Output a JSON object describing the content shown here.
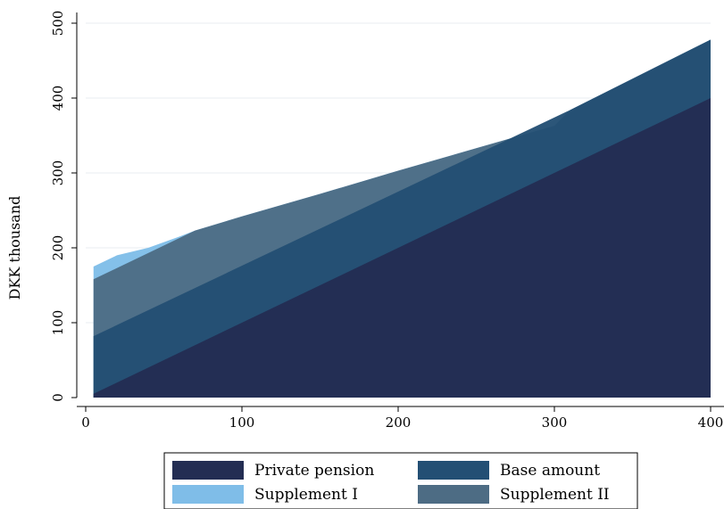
{
  "chart_data": {
    "type": "area",
    "title": "",
    "xlabel": "",
    "ylabel": "DKK thousand",
    "xlim": [
      0,
      400
    ],
    "ylim": [
      0,
      500
    ],
    "xticks": [
      0,
      100,
      200,
      300,
      400
    ],
    "yticks": [
      0,
      100,
      200,
      300,
      400,
      500
    ],
    "xtick_labels": [
      "0",
      "100",
      "200",
      "300",
      "400"
    ],
    "ytick_labels": [
      "0",
      "100",
      "200",
      "300",
      "400",
      "500"
    ],
    "grid": "horizontal",
    "legend_position": "bottom",
    "series": [
      {
        "name": "Supplement I",
        "color": "#7fbde8",
        "points": [
          [
            5,
            175
          ],
          [
            20,
            190
          ],
          [
            40,
            200
          ],
          [
            60,
            215
          ],
          [
            70,
            223
          ],
          [
            100,
            242
          ],
          [
            150,
            272
          ],
          [
            200,
            303
          ],
          [
            250,
            333
          ],
          [
            300,
            363
          ],
          [
            310,
            384
          ],
          [
            400,
            478
          ]
        ]
      },
      {
        "name": "Supplement II",
        "color": "#4d6c84",
        "points": [
          [
            5,
            158
          ],
          [
            70,
            223
          ],
          [
            100,
            242
          ],
          [
            150,
            272
          ],
          [
            200,
            303
          ],
          [
            250,
            333
          ],
          [
            300,
            363
          ],
          [
            310,
            384
          ],
          [
            400,
            478
          ]
        ]
      },
      {
        "name": "Base amount",
        "color": "#234f74",
        "points": [
          [
            5,
            82
          ],
          [
            310,
            384
          ],
          [
            400,
            478
          ]
        ]
      },
      {
        "name": "Private pension",
        "color": "#232d53",
        "points": [
          [
            5,
            5
          ],
          [
            400,
            400
          ]
        ]
      }
    ],
    "legend": [
      {
        "label": "Private pension",
        "color": "#232d53"
      },
      {
        "label": "Base amount",
        "color": "#234f74"
      },
      {
        "label": "Supplement I",
        "color": "#7fbde8"
      },
      {
        "label": "Supplement II",
        "color": "#4d6c84"
      }
    ]
  }
}
